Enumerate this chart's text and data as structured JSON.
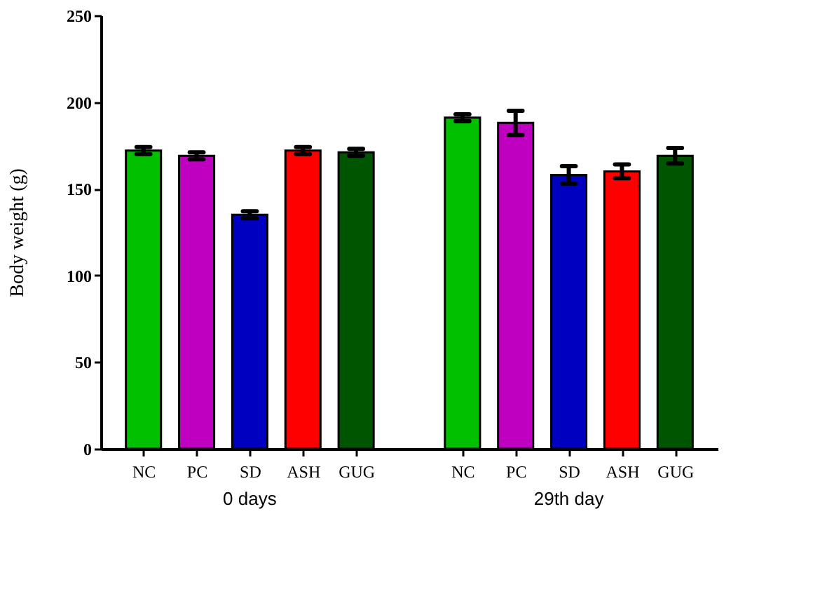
{
  "chart_data": {
    "type": "bar",
    "ylabel": "Body weight (g)",
    "categories": [
      "NC",
      "PC",
      "SD",
      "ASH",
      "GUG",
      null,
      "NC",
      "PC",
      "SD",
      "ASH",
      "GUG"
    ],
    "values": [
      172,
      169,
      135,
      172,
      171,
      null,
      191,
      188,
      158,
      160,
      169
    ],
    "errors": [
      2,
      2,
      2,
      2,
      2,
      null,
      2,
      7,
      5,
      4,
      4.5
    ],
    "colors": [
      "#00c000",
      "#c000c0",
      "#0000c0",
      "#ff0000",
      "#005500",
      null,
      "#00c000",
      "#c000c0",
      "#0000c0",
      "#ff0000",
      "#005500"
    ],
    "ylim": [
      0,
      250
    ],
    "yticks": [
      0,
      50,
      100,
      150,
      200,
      250
    ],
    "grid": false,
    "annotations": [
      "0 days",
      "29th day"
    ]
  }
}
